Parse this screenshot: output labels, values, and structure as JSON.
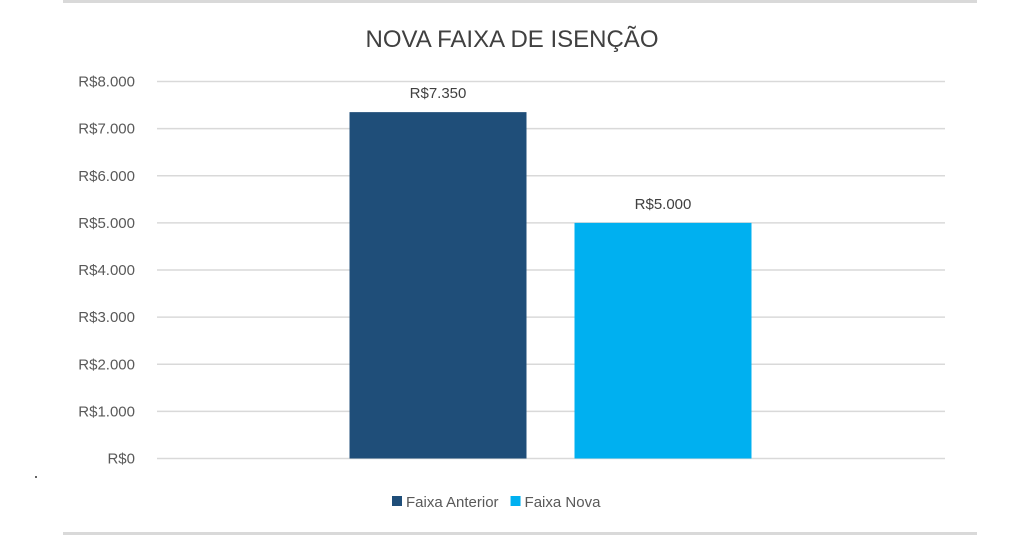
{
  "chart_data": {
    "type": "bar",
    "title": "NOVA FAIXA DE ISENÇÃO",
    "xlabel": "",
    "ylabel": "",
    "categories": [
      ""
    ],
    "series": [
      {
        "name": "Faixa Anterior",
        "values": [
          7350
        ],
        "color": "#1F4E79",
        "data_label": "R$7.350"
      },
      {
        "name": "Faixa Nova",
        "values": [
          5000
        ],
        "color": "#00B0F0",
        "data_label": "R$5.000"
      }
    ],
    "ylim": [
      0,
      8000
    ],
    "y_ticks": [
      {
        "value": 0,
        "label": "R$0"
      },
      {
        "value": 1000,
        "label": "R$1.000"
      },
      {
        "value": 2000,
        "label": "R$2.000"
      },
      {
        "value": 3000,
        "label": "R$3.000"
      },
      {
        "value": 4000,
        "label": "R$4.000"
      },
      {
        "value": 5000,
        "label": "R$5.000"
      },
      {
        "value": 6000,
        "label": "R$6.000"
      },
      {
        "value": 7000,
        "label": "R$7.000"
      },
      {
        "value": 8000,
        "label": "R$8.000"
      }
    ],
    "grid": true,
    "gridline_color": "#D9D9D9",
    "legend_position": "bottom"
  }
}
